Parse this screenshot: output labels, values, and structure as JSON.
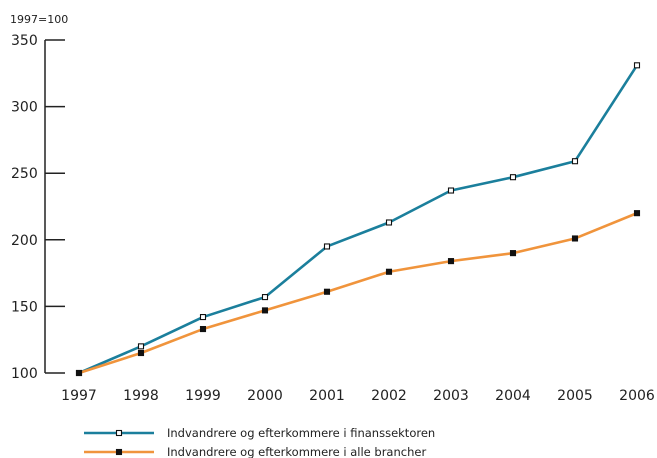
{
  "chart_data": {
    "type": "line",
    "y_unit_label": "1997=100",
    "x": [
      "1997",
      "1998",
      "1999",
      "2000",
      "2001",
      "2002",
      "2003",
      "2004",
      "2005",
      "2006"
    ],
    "y_ticks": [
      "100",
      "150",
      "200",
      "250",
      "300",
      "350"
    ],
    "ylim": [
      100,
      350
    ],
    "grid": false,
    "legend_position": "bottom",
    "series": [
      {
        "name": "Indvandrere og efterkommere i finanssektoren",
        "color": "#1b7f9c",
        "marker": "hollow-square",
        "values": [
          100,
          120,
          142,
          157,
          195,
          213,
          237,
          247,
          259,
          331
        ]
      },
      {
        "name": "Indvandrere og efterkommere i alle brancher",
        "color": "#f0943c",
        "marker": "filled-square",
        "values": [
          100,
          115,
          133,
          147,
          161,
          176,
          184,
          190,
          201,
          220
        ]
      }
    ]
  }
}
